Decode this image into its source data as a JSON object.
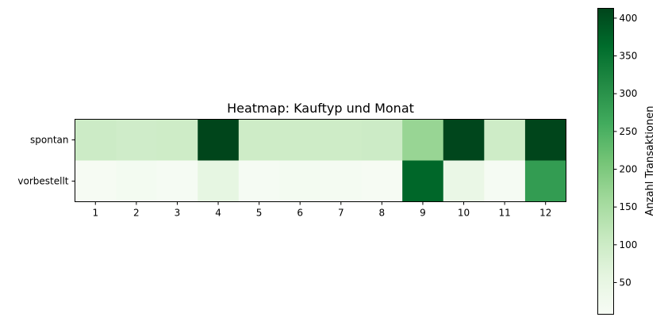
{
  "chart_data": {
    "type": "heatmap",
    "title": "Heatmap: Kauftyp und Monat",
    "x_categories": [
      "1",
      "2",
      "3",
      "4",
      "5",
      "6",
      "7",
      "8",
      "9",
      "10",
      "11",
      "12"
    ],
    "y_categories": [
      "spontan",
      "vorbestellt"
    ],
    "values": [
      [
        100,
        95,
        98,
        412,
        98,
        98,
        98,
        100,
        170,
        410,
        98,
        412
      ],
      [
        12,
        18,
        14,
        55,
        14,
        18,
        16,
        12,
        370,
        45,
        14,
        285
      ]
    ],
    "colorbar": {
      "label": "Anzahl Transaktionen",
      "min": 8,
      "max": 413,
      "ticks": [
        50,
        100,
        150,
        200,
        250,
        300,
        350,
        400
      ],
      "colormap": "Greens"
    }
  }
}
